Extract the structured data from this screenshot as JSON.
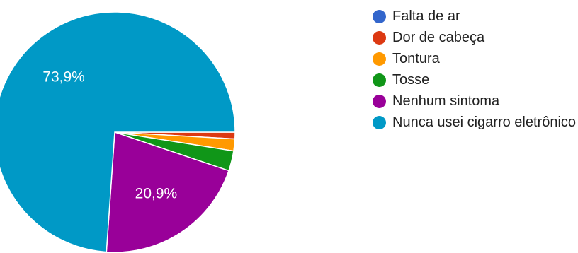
{
  "chart_data": {
    "type": "pie",
    "start_angle_deg": 90,
    "direction": "clockwise",
    "legend_position": "right",
    "slices": [
      {
        "label": "Falta de ar",
        "value": 0.0,
        "color": "#3366cc",
        "pct_label": ""
      },
      {
        "label": "Dor de cabeça",
        "value": 0.9,
        "color": "#dc3912",
        "pct_label": ""
      },
      {
        "label": "Tontura",
        "value": 1.6,
        "color": "#ff9900",
        "pct_label": ""
      },
      {
        "label": "Tosse",
        "value": 2.7,
        "color": "#109618",
        "pct_label": ""
      },
      {
        "label": "Nenhum sintoma",
        "value": 20.9,
        "color": "#990099",
        "pct_label": "20,9%"
      },
      {
        "label": "Nunca usei cigarro eletrônico",
        "value": 73.9,
        "color": "#0099c6",
        "pct_label": "73,9%"
      }
    ]
  }
}
